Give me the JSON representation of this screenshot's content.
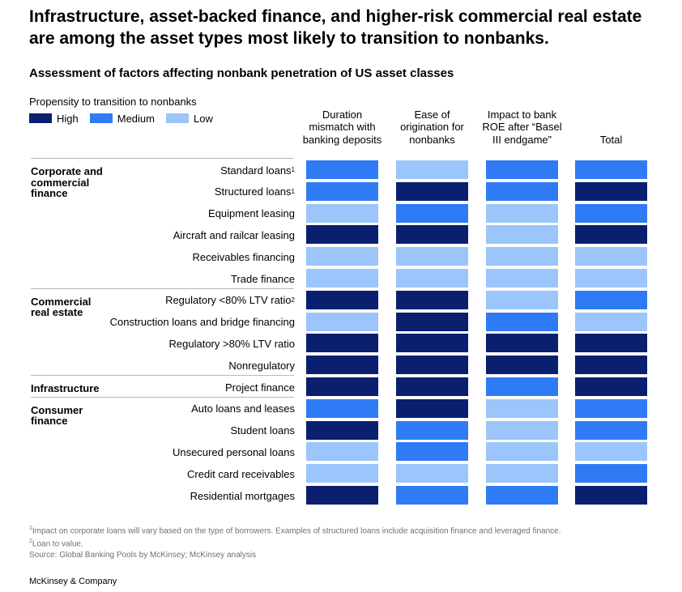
{
  "headline": "Infrastructure, asset-backed finance, and higher-risk commercial real estate are among the asset types most likely to transition to nonbanks.",
  "subhead": "Assessment of factors affecting nonbank penetration of US asset classes",
  "colors": {
    "High": "#0a1f6e",
    "Medium": "#2f7bf5",
    "Low": "#9cc5fb"
  },
  "chart_data": {
    "type": "heatmap",
    "legend_title": "Propensity to transition to nonbanks",
    "legend": [
      "High",
      "Medium",
      "Low"
    ],
    "columns": [
      "Duration mismatch with banking deposits",
      "Ease of origination for nonbanks",
      "Impact to bank ROE after “Basel III endgame”",
      "Total"
    ],
    "groups": [
      {
        "name": "Corporate and commercial finance",
        "rows": [
          {
            "label": "Standard loans",
            "footnote": "1",
            "values": [
              "Medium",
              "Low",
              "Medium",
              "Medium"
            ]
          },
          {
            "label": "Structured loans",
            "footnote": "1",
            "values": [
              "Medium",
              "High",
              "Medium",
              "High"
            ]
          },
          {
            "label": "Equipment leasing",
            "footnote": "",
            "values": [
              "Low",
              "Medium",
              "Low",
              "Medium"
            ]
          },
          {
            "label": "Aircraft and railcar leasing",
            "footnote": "",
            "values": [
              "High",
              "High",
              "Low",
              "High"
            ]
          },
          {
            "label": "Receivables financing",
            "footnote": "",
            "values": [
              "Low",
              "Low",
              "Low",
              "Low"
            ]
          },
          {
            "label": "Trade finance",
            "footnote": "",
            "values": [
              "Low",
              "Low",
              "Low",
              "Low"
            ]
          }
        ]
      },
      {
        "name": "Commercial real estate",
        "rows": [
          {
            "label": "Regulatory <80% LTV ratio",
            "footnote": "2",
            "values": [
              "High",
              "High",
              "Low",
              "Medium"
            ]
          },
          {
            "label": "Construction loans and bridge financing",
            "footnote": "",
            "values": [
              "Low",
              "High",
              "Medium",
              "Low"
            ]
          },
          {
            "label": "Regulatory >80% LTV ratio",
            "footnote": "",
            "values": [
              "High",
              "High",
              "High",
              "High"
            ]
          },
          {
            "label": "Nonregulatory",
            "footnote": "",
            "values": [
              "High",
              "High",
              "High",
              "High"
            ]
          }
        ]
      },
      {
        "name": "Infrastructure",
        "rows": [
          {
            "label": "Project finance",
            "footnote": "",
            "values": [
              "High",
              "High",
              "Medium",
              "High"
            ]
          }
        ]
      },
      {
        "name": "Consumer finance",
        "rows": [
          {
            "label": "Auto loans and leases",
            "footnote": "",
            "values": [
              "Medium",
              "High",
              "Low",
              "Medium"
            ]
          },
          {
            "label": "Student loans",
            "footnote": "",
            "values": [
              "High",
              "Medium",
              "Low",
              "Medium"
            ]
          },
          {
            "label": "Unsecured personal loans",
            "footnote": "",
            "values": [
              "Low",
              "Medium",
              "Low",
              "Low"
            ]
          },
          {
            "label": "Credit card receivables",
            "footnote": "",
            "values": [
              "Low",
              "Low",
              "Low",
              "Medium"
            ]
          },
          {
            "label": "Residential mortgages",
            "footnote": "",
            "values": [
              "High",
              "Medium",
              "Medium",
              "High"
            ]
          }
        ]
      }
    ]
  },
  "footnotes": [
    {
      "mark": "1",
      "text": "Impact on corporate loans will vary based on the type of borrowers. Examples of structured loans include acquisition finance and leveraged finance."
    },
    {
      "mark": "2",
      "text": "Loan to value."
    },
    {
      "mark": "",
      "text": "Source: Global Banking Pools by McKinsey; McKinsey analysis"
    }
  ],
  "brand": "McKinsey & Company"
}
